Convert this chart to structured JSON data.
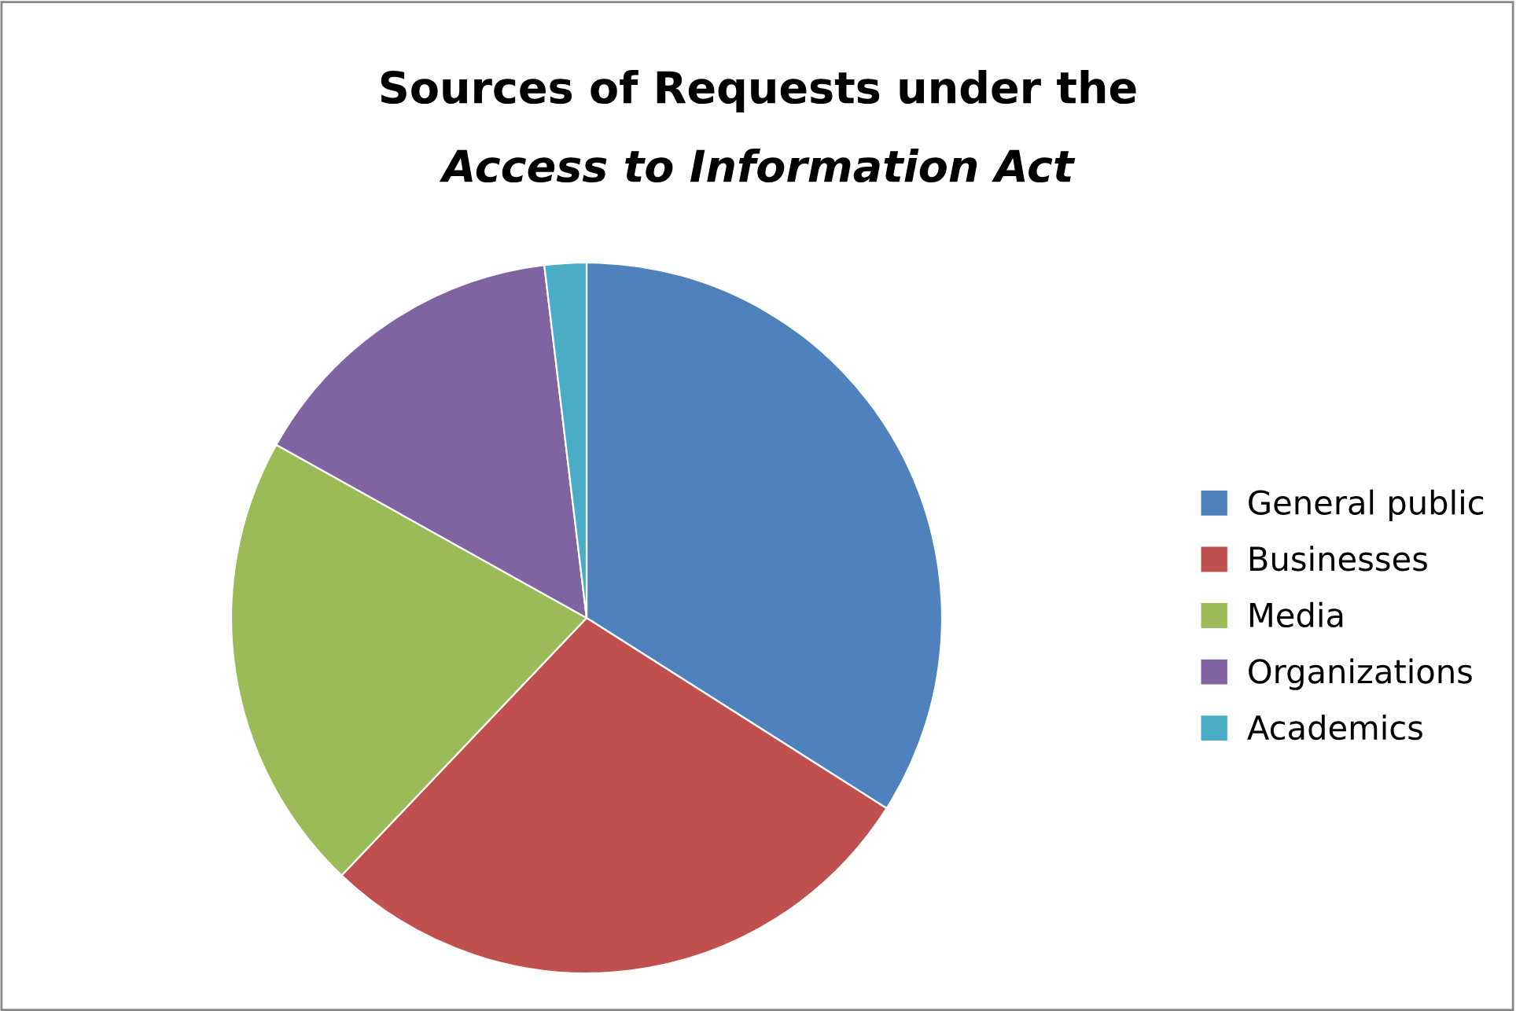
{
  "chart_data": {
    "type": "pie",
    "title": "Sources of Requests under the",
    "subtitle": "Access to Information Act",
    "categories": [
      "General public",
      "Businesses",
      "Media",
      "Organizations",
      "Academics"
    ],
    "values": [
      34.0,
      28.1,
      21.0,
      15.0,
      1.9
    ],
    "colors": [
      "#4f81bd",
      "#c0504d",
      "#9bbb59",
      "#8064a2",
      "#4bacc6"
    ],
    "legend": "right"
  }
}
